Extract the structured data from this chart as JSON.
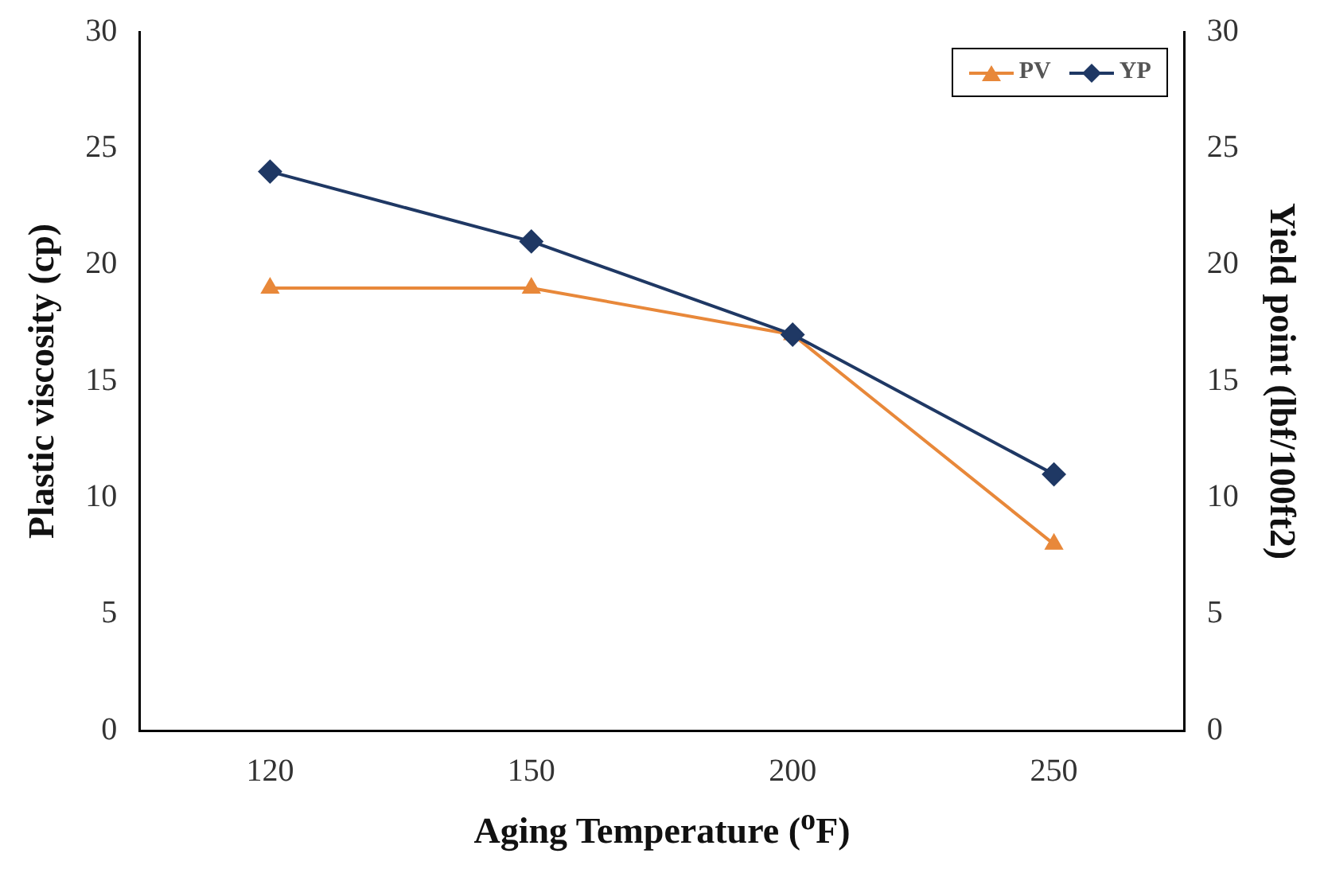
{
  "chart_data": {
    "type": "line",
    "xlabel": "Aging Temperature ($^{o}$F)",
    "ylabel": "Plastic viscosity (cp)",
    "y2label": "Yield point (lbf/100ft2)",
    "categories": [
      "120",
      "150",
      "200",
      "250"
    ],
    "series": [
      {
        "name": "PV",
        "color": "#e8883a",
        "values": [
          19,
          19,
          17,
          8
        ],
        "marker": "triangle"
      },
      {
        "name": "YP",
        "color": "#1f3864",
        "values": [
          24,
          21,
          17,
          11
        ],
        "marker": "diamond",
        "axis": "y2"
      }
    ],
    "ylim": [
      0,
      30
    ],
    "yticks": [
      0,
      5,
      10,
      15,
      20,
      25,
      30
    ],
    "y2lim": [
      0,
      30
    ],
    "y2ticks": [
      0,
      5,
      10,
      15,
      20,
      25,
      30
    ],
    "grid": false,
    "legend": "top right",
    "line_style": "solid"
  }
}
